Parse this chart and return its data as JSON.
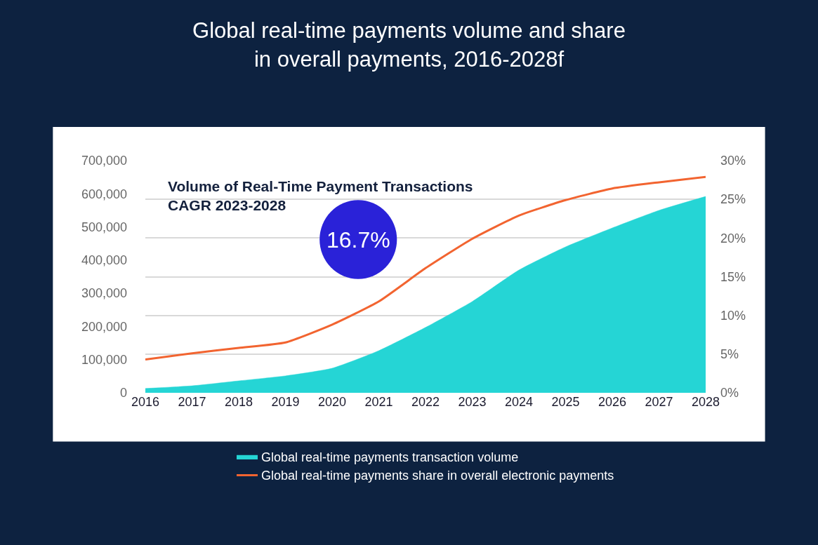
{
  "chart_data": {
    "type": "area",
    "title": "Global real-time payments volume and share\nin overall payments, 2016-2028f",
    "categories": [
      "2016",
      "2017",
      "2018",
      "2019",
      "2020",
      "2021",
      "2022",
      "2023",
      "2024",
      "2025",
      "2026",
      "2027",
      "2028"
    ],
    "series": [
      {
        "name": "Global real-time payments transaction volume",
        "color": "#25d5d5",
        "values": [
          13000,
          21000,
          36000,
          51000,
          74000,
          127000,
          197000,
          275000,
          370000,
          440000,
          497000,
          550000,
          592000
        ]
      },
      {
        "name": "Global real-time payments share in overall electronic payments",
        "type": "line",
        "axis": "y2",
        "color": "#f26430",
        "values": [
          4.3,
          5.1,
          5.8,
          6.5,
          8.8,
          11.8,
          16.1,
          19.9,
          22.9,
          24.9,
          26.4,
          27.2,
          27.9
        ]
      }
    ],
    "ylim": [
      0,
      700000
    ],
    "yticks": [
      0,
      {
        "value": 100000,
        "label": "100,000"
      },
      {
        "value": 200000,
        "label": "200,000"
      },
      {
        "value": 300000,
        "label": "300,000"
      },
      {
        "value": 400000,
        "label": "400,000"
      },
      {
        "value": 500000,
        "label": "500,000"
      },
      {
        "value": 600000,
        "label": "600,000"
      },
      {
        "value": 700000,
        "label": "700,000"
      }
    ],
    "y2lim": [
      0,
      30
    ],
    "y2ticks": [
      {
        "value": 0,
        "label": "0%"
      },
      {
        "value": 5,
        "label": "5%"
      },
      {
        "value": 10,
        "label": "10%"
      },
      {
        "value": 15,
        "label": "15%"
      },
      {
        "value": 20,
        "label": "20%"
      },
      {
        "value": 25,
        "label": "25%"
      },
      {
        "value": 30,
        "label": "30%"
      }
    ],
    "annotations": [
      "Volume of Real-Time Payment Transactions\nCAGR 2023-2028",
      "16.7%"
    ],
    "grid": "y",
    "legend": "bottom",
    "marker": "none",
    "line_style": "solid"
  }
}
